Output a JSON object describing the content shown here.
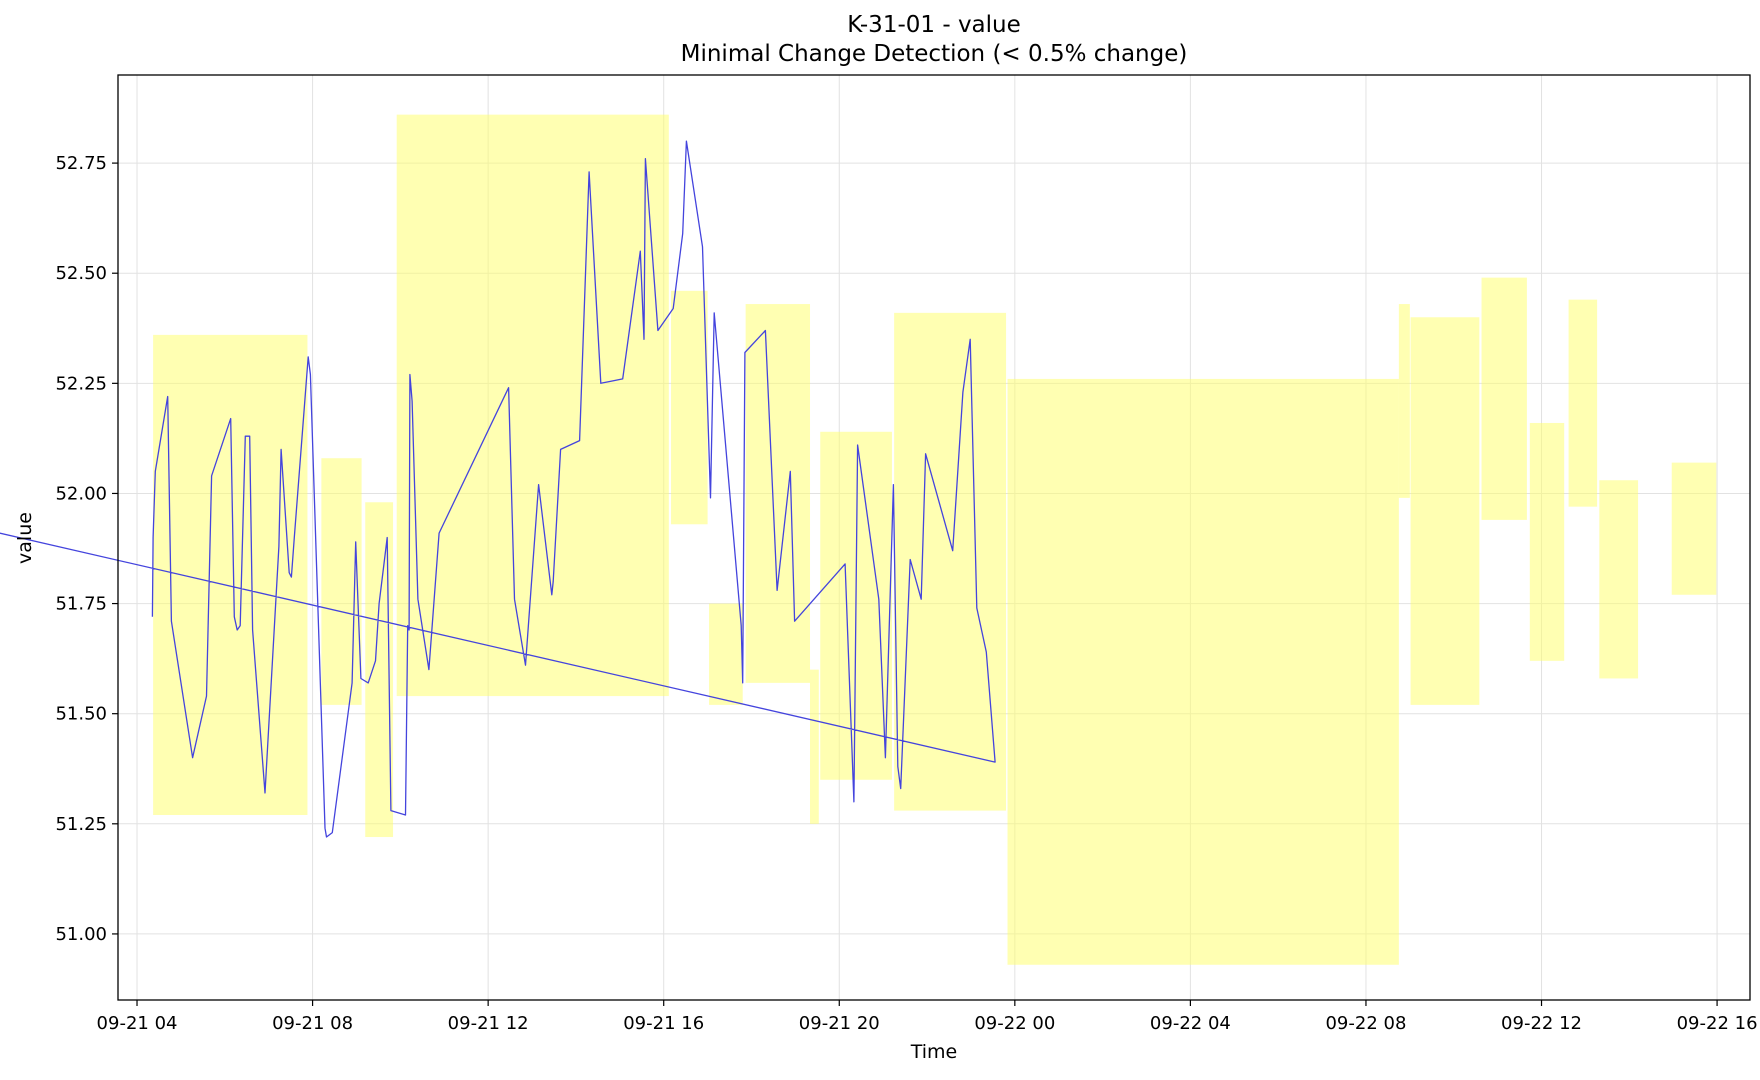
{
  "chart_data": {
    "type": "line",
    "title": "K-31-01 - value",
    "subtitle": "Minimal Change Detection (< 0.5% change)",
    "xlabel": "Time",
    "ylabel": "value",
    "x_axis_type": "datetime",
    "xlim": [
      "2021-09-21 03:34",
      "2021-09-22 16:45"
    ],
    "ylim": [
      50.85,
      52.95
    ],
    "xticks": [
      {
        "value": "2021-09-21 04:00",
        "label": "09-21 04"
      },
      {
        "value": "2021-09-21 08:00",
        "label": "09-21 08"
      },
      {
        "value": "2021-09-21 12:00",
        "label": "09-21 12"
      },
      {
        "value": "2021-09-21 16:00",
        "label": "09-21 16"
      },
      {
        "value": "2021-09-21 20:00",
        "label": "09-21 20"
      },
      {
        "value": "2021-09-22 00:00",
        "label": "09-22 00"
      },
      {
        "value": "2021-09-22 04:00",
        "label": "09-22 04"
      },
      {
        "value": "2021-09-22 08:00",
        "label": "09-22 08"
      },
      {
        "value": "2021-09-22 12:00",
        "label": "09-22 12"
      },
      {
        "value": "2021-09-22 16:00",
        "label": "09-22 16"
      }
    ],
    "yticks": [
      {
        "value": 51.0,
        "label": "51.00"
      },
      {
        "value": 51.25,
        "label": "51.25"
      },
      {
        "value": 51.5,
        "label": "51.50"
      },
      {
        "value": 51.75,
        "label": "51.75"
      },
      {
        "value": 52.0,
        "label": "52.00"
      },
      {
        "value": 52.25,
        "label": "52.25"
      },
      {
        "value": 52.5,
        "label": "52.50"
      },
      {
        "value": 52.75,
        "label": "52.75"
      }
    ],
    "grid": true,
    "colors": {
      "line": "#4444dd",
      "region_fill": "#ffff66",
      "region_opacity": 0.5,
      "grid": "#e2e2e2",
      "axes": "#000000"
    },
    "series": [
      {
        "x": [
          "2021-09-21 04:21",
          "2021-09-21 04:22",
          "2021-09-21 04:25",
          "2021-09-21 04:42",
          "2021-09-21 04:47",
          "2021-09-21 05:16",
          "2021-09-21 05:35",
          "2021-09-21 05:42",
          "2021-09-21 06:08",
          "2021-09-21 06:13",
          "2021-09-21 06:17",
          "2021-09-21 06:21",
          "2021-09-21 06:28",
          "2021-09-21 06:34",
          "2021-09-21 06:38",
          "2021-09-21 06:55",
          "2021-09-21 07:14",
          "2021-09-21 07:17",
          "2021-09-21 07:28",
          "2021-09-21 07:31",
          "2021-09-21 07:35",
          "2021-09-21 07:54",
          "2021-09-21 07:57",
          "2021-09-21 08:17",
          "2021-09-21 08:19",
          "2021-09-21 08:27",
          "2021-09-21 08:54",
          "2021-09-21 08:59",
          "2021-09-21 09:06",
          "2021-09-21 09:16",
          "2021-09-21 09:26",
          "2021-09-21 09:31",
          "2021-09-21 09:42",
          "2021-09-21 09:47",
          "2021-09-21 10:07",
          "2021-09-21 10:10",
          "2021-09-21 10:12",
          "2021-09-21 10:13",
          "2021-09-21 10:16",
          "2021-09-21 10:24",
          "2021-09-21 10:39",
          "2021-09-21 10:53",
          "2021-09-21 12:28",
          "2021-09-21 12:36",
          "2021-09-21 12:51",
          "2021-09-21 13:09",
          "2021-09-21 13:27",
          "2021-09-21 13:29",
          "2021-09-21 13:39",
          "2021-09-21 14:05",
          "2021-09-21 14:18",
          "2021-09-21 14:34",
          "2021-09-21 15:04",
          "2021-09-21 15:28",
          "2021-09-21 15:33",
          "2021-09-21 15:35",
          "2021-09-21 15:52",
          "2021-09-21 16:13",
          "2021-09-21 16:26",
          "2021-09-21 16:31",
          "2021-09-21 16:53",
          "2021-09-21 17:04",
          "2021-09-21 17:09",
          "2021-09-21 17:46",
          "2021-09-21 17:48",
          "2021-09-21 17:51",
          "2021-09-21 18:19",
          "2021-09-21 18:35",
          "2021-09-21 18:53",
          "2021-09-21 18:59",
          "2021-09-21 20:08",
          "2021-09-21 20:20",
          "2021-09-21 20:25",
          "2021-09-21 20:54",
          "2021-09-21 21:03",
          "2021-09-21 21:14",
          "2021-09-21 21:20",
          "2021-09-21 21:24",
          "2021-09-21 21:37",
          "2021-09-21 21:52",
          "2021-09-21 21:58",
          "2021-09-21 22:35",
          "2021-09-21 22:49",
          "2021-09-21 22:59",
          "2021-09-21 23:08",
          "2021-09-21 23:21",
          "2021-09-21 23:33",
          "2021-09-21 00:00"
        ],
        "values": [
          51.72,
          51.9,
          52.05,
          52.22,
          51.71,
          51.4,
          51.54,
          52.04,
          52.17,
          51.72,
          51.69,
          51.7,
          52.13,
          52.13,
          51.69,
          51.32,
          51.88,
          52.1,
          51.82,
          51.81,
          51.9,
          52.31,
          52.27,
          51.24,
          51.22,
          51.23,
          51.57,
          51.89,
          51.58,
          51.57,
          51.62,
          51.75,
          51.9,
          51.28,
          51.27,
          51.7,
          51.69,
          52.27,
          52.21,
          51.76,
          51.6,
          51.91,
          52.24,
          51.76,
          51.61,
          52.02,
          51.77,
          51.8,
          52.1,
          52.12,
          52.73,
          52.25,
          52.26,
          52.55,
          52.35,
          52.76,
          52.37,
          52.42,
          52.59,
          52.8,
          52.56,
          51.99,
          52.41,
          51.7,
          51.57,
          52.32,
          52.37,
          51.78,
          52.05,
          51.71,
          51.84,
          51.3,
          52.11,
          51.76,
          51.4,
          52.02,
          51.38,
          51.33,
          51.85,
          51.76,
          52.09,
          51.87,
          52.23,
          52.35,
          51.74,
          51.64,
          51.39,
          51.93
        ]
      }
    ],
    "regions": [
      {
        "x0": "2021-09-21 04:22",
        "x1": "2021-09-21 07:53",
        "y0": 51.27,
        "y1": 52.36
      },
      {
        "x0": "2021-09-21 08:12",
        "x1": "2021-09-21 09:07",
        "y0": 51.52,
        "y1": 52.08
      },
      {
        "x0": "2021-09-21 09:12",
        "x1": "2021-09-21 09:50",
        "y0": 51.22,
        "y1": 51.98
      },
      {
        "x0": "2021-09-21 09:55",
        "x1": "2021-09-21 16:07",
        "y0": 51.54,
        "y1": 52.86
      },
      {
        "x0": "2021-09-21 16:10",
        "x1": "2021-09-21 17:00",
        "y0": 51.93,
        "y1": 52.46
      },
      {
        "x0": "2021-09-21 17:02",
        "x1": "2021-09-21 17:48",
        "y0": 51.52,
        "y1": 51.75
      },
      {
        "x0": "2021-09-21 17:52",
        "x1": "2021-09-21 19:20",
        "y0": 51.57,
        "y1": 52.43
      },
      {
        "x0": "2021-09-21 19:20",
        "x1": "2021-09-21 19:32",
        "y0": 51.25,
        "y1": 51.6
      },
      {
        "x0": "2021-09-21 19:34",
        "x1": "2021-09-21 21:12",
        "y0": 51.35,
        "y1": 52.14
      },
      {
        "x0": "2021-09-21 21:15",
        "x1": "2021-09-21 23:48",
        "y0": 51.28,
        "y1": 52.41
      },
      {
        "x0": "2021-09-21 23:50",
        "x1": "2021-09-22 08:45",
        "y0": 50.93,
        "y1": 52.26
      },
      {
        "x0": "2021-09-22 08:45",
        "x1": "2021-09-22 09:00",
        "y0": 51.99,
        "y1": 52.43
      },
      {
        "x0": "2021-09-22 09:01",
        "x1": "2021-09-22 10:35",
        "y0": 51.52,
        "y1": 52.4
      },
      {
        "x0": "2021-09-22 10:38",
        "x1": "2021-09-22 11:40",
        "y0": 51.94,
        "y1": 52.49
      },
      {
        "x0": "2021-09-22 11:44",
        "x1": "2021-09-22 12:31",
        "y0": 51.62,
        "y1": 52.16
      },
      {
        "x0": "2021-09-22 12:37",
        "x1": "2021-09-22 13:16",
        "y0": 51.97,
        "y1": 52.44
      },
      {
        "x0": "2021-09-22 13:19",
        "x1": "2021-09-22 14:12",
        "y0": 51.58,
        "y1": 52.03
      },
      {
        "x0": "2021-09-22 14:58",
        "x1": "2021-09-22 15:59",
        "y0": 51.77,
        "y1": 52.07
      }
    ]
  }
}
